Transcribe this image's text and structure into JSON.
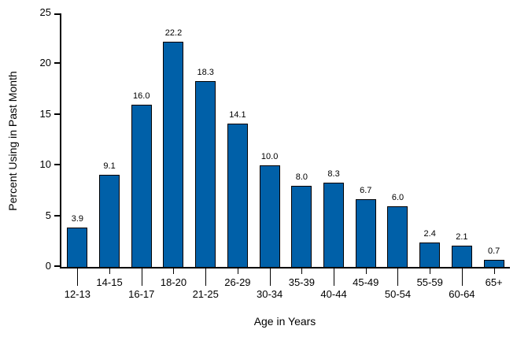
{
  "chart_data": {
    "type": "bar",
    "title": "",
    "xlabel": "Age in Years",
    "ylabel": "Percent Using in Past Month",
    "categories": [
      "12-13",
      "14-15",
      "16-17",
      "18-20",
      "21-25",
      "26-29",
      "30-34",
      "35-39",
      "40-44",
      "45-49",
      "50-54",
      "55-59",
      "60-64",
      "65+"
    ],
    "values": [
      3.9,
      9.1,
      16.0,
      22.2,
      18.3,
      14.1,
      10.0,
      8.0,
      8.3,
      6.7,
      6.0,
      2.4,
      2.1,
      0.7
    ],
    "value_label_decimals": 1,
    "ylim": [
      0,
      25
    ],
    "yticks": [
      0,
      5,
      10,
      15,
      20,
      25
    ],
    "grid": false,
    "legend_position": "none",
    "x_labels_staggered": true,
    "colors": {
      "bar_fill": "#0060a8",
      "bar_border": "#000000",
      "axis": "#000000",
      "text": "#000000",
      "background": "#ffffff"
    }
  }
}
